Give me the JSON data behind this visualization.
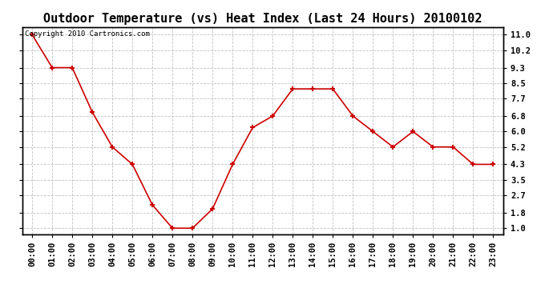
{
  "title": "Outdoor Temperature (vs) Heat Index (Last 24 Hours) 20100102",
  "copyright_text": "Copyright 2010 Cartronics.com",
  "x_labels": [
    "00:00",
    "01:00",
    "02:00",
    "03:00",
    "04:00",
    "05:00",
    "06:00",
    "07:00",
    "08:00",
    "09:00",
    "10:00",
    "11:00",
    "12:00",
    "13:00",
    "14:00",
    "15:00",
    "16:00",
    "17:00",
    "18:00",
    "19:00",
    "20:00",
    "21:00",
    "22:00",
    "23:00"
  ],
  "y_values": [
    11.0,
    9.3,
    9.3,
    7.0,
    5.2,
    4.3,
    2.2,
    1.0,
    1.0,
    2.0,
    4.3,
    6.2,
    6.8,
    8.2,
    8.2,
    8.2,
    6.8,
    6.0,
    5.2,
    6.0,
    5.2,
    5.2,
    4.3,
    4.3
  ],
  "line_color": "#cc0000",
  "marker_color": "#cc0000",
  "bg_color": "#ffffff",
  "plot_bg_color": "#ffffff",
  "grid_color": "#bbbbbb",
  "title_fontsize": 11,
  "y_ticks": [
    1.0,
    1.8,
    2.7,
    3.5,
    4.3,
    5.2,
    6.0,
    6.8,
    7.7,
    8.5,
    9.3,
    10.2,
    11.0
  ],
  "ylim": [
    0.7,
    11.4
  ],
  "title_color": "#000000",
  "border_color": "#000000",
  "tick_fontsize": 7.5,
  "copyright_fontsize": 6.5
}
